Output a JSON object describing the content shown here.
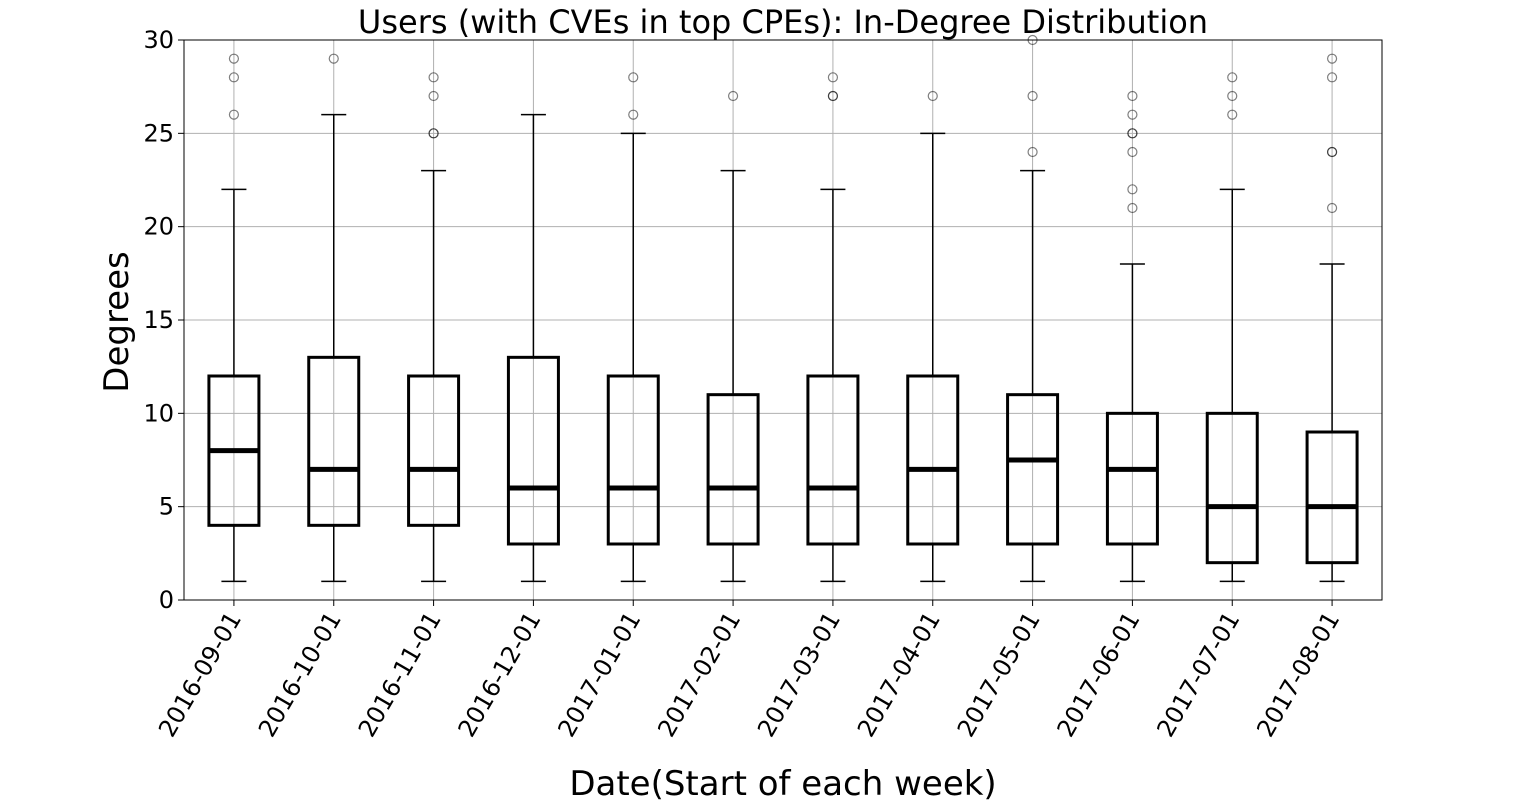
{
  "chart_data": {
    "type": "box",
    "title": "Users (with CVEs in top CPEs): In-Degree Distribution",
    "xlabel": "Date(Start of each week)",
    "ylabel": "Degrees",
    "ylim": [
      0,
      30
    ],
    "yticks": [
      0,
      5,
      10,
      15,
      20,
      25,
      30
    ],
    "grid": true,
    "categories": [
      "2016-09-01",
      "2016-10-01",
      "2016-11-01",
      "2016-12-01",
      "2017-01-01",
      "2017-02-01",
      "2017-03-01",
      "2017-04-01",
      "2017-05-01",
      "2017-06-01",
      "2017-07-01",
      "2017-08-01"
    ],
    "boxes": [
      {
        "whislo": 1,
        "q1": 4,
        "median": 8,
        "q3": 12,
        "whishi": 22,
        "fliers": [
          26,
          28,
          29
        ]
      },
      {
        "whislo": 1,
        "q1": 4,
        "median": 7,
        "q3": 13,
        "whishi": 26,
        "fliers": [
          29
        ]
      },
      {
        "whislo": 1,
        "q1": 4,
        "median": 7,
        "q3": 12,
        "whishi": 23,
        "fliers": [
          25,
          25,
          27,
          28
        ]
      },
      {
        "whislo": 1,
        "q1": 3,
        "median": 6,
        "q3": 13,
        "whishi": 26,
        "fliers": []
      },
      {
        "whislo": 1,
        "q1": 3,
        "median": 6,
        "q3": 12,
        "whishi": 25,
        "fliers": [
          26,
          28
        ]
      },
      {
        "whislo": 1,
        "q1": 3,
        "median": 6,
        "q3": 11,
        "whishi": 23,
        "fliers": [
          27
        ]
      },
      {
        "whislo": 1,
        "q1": 3,
        "median": 6,
        "q3": 12,
        "whishi": 22,
        "fliers": [
          27,
          27,
          28
        ]
      },
      {
        "whislo": 1,
        "q1": 3,
        "median": 7,
        "q3": 12,
        "whishi": 25,
        "fliers": [
          27
        ]
      },
      {
        "whislo": 1,
        "q1": 3,
        "median": 7.5,
        "q3": 11,
        "whishi": 23,
        "fliers": [
          24,
          27,
          30
        ]
      },
      {
        "whislo": 1,
        "q1": 3,
        "median": 7,
        "q3": 10,
        "whishi": 18,
        "fliers": [
          21,
          22,
          24,
          25,
          25,
          26,
          27
        ]
      },
      {
        "whislo": 1,
        "q1": 2,
        "median": 5,
        "q3": 10,
        "whishi": 22,
        "fliers": [
          26,
          27,
          28
        ]
      },
      {
        "whislo": 1,
        "q1": 2,
        "median": 5,
        "q3": 9,
        "whishi": 18,
        "fliers": [
          21,
          24,
          24,
          28,
          29
        ]
      }
    ]
  }
}
